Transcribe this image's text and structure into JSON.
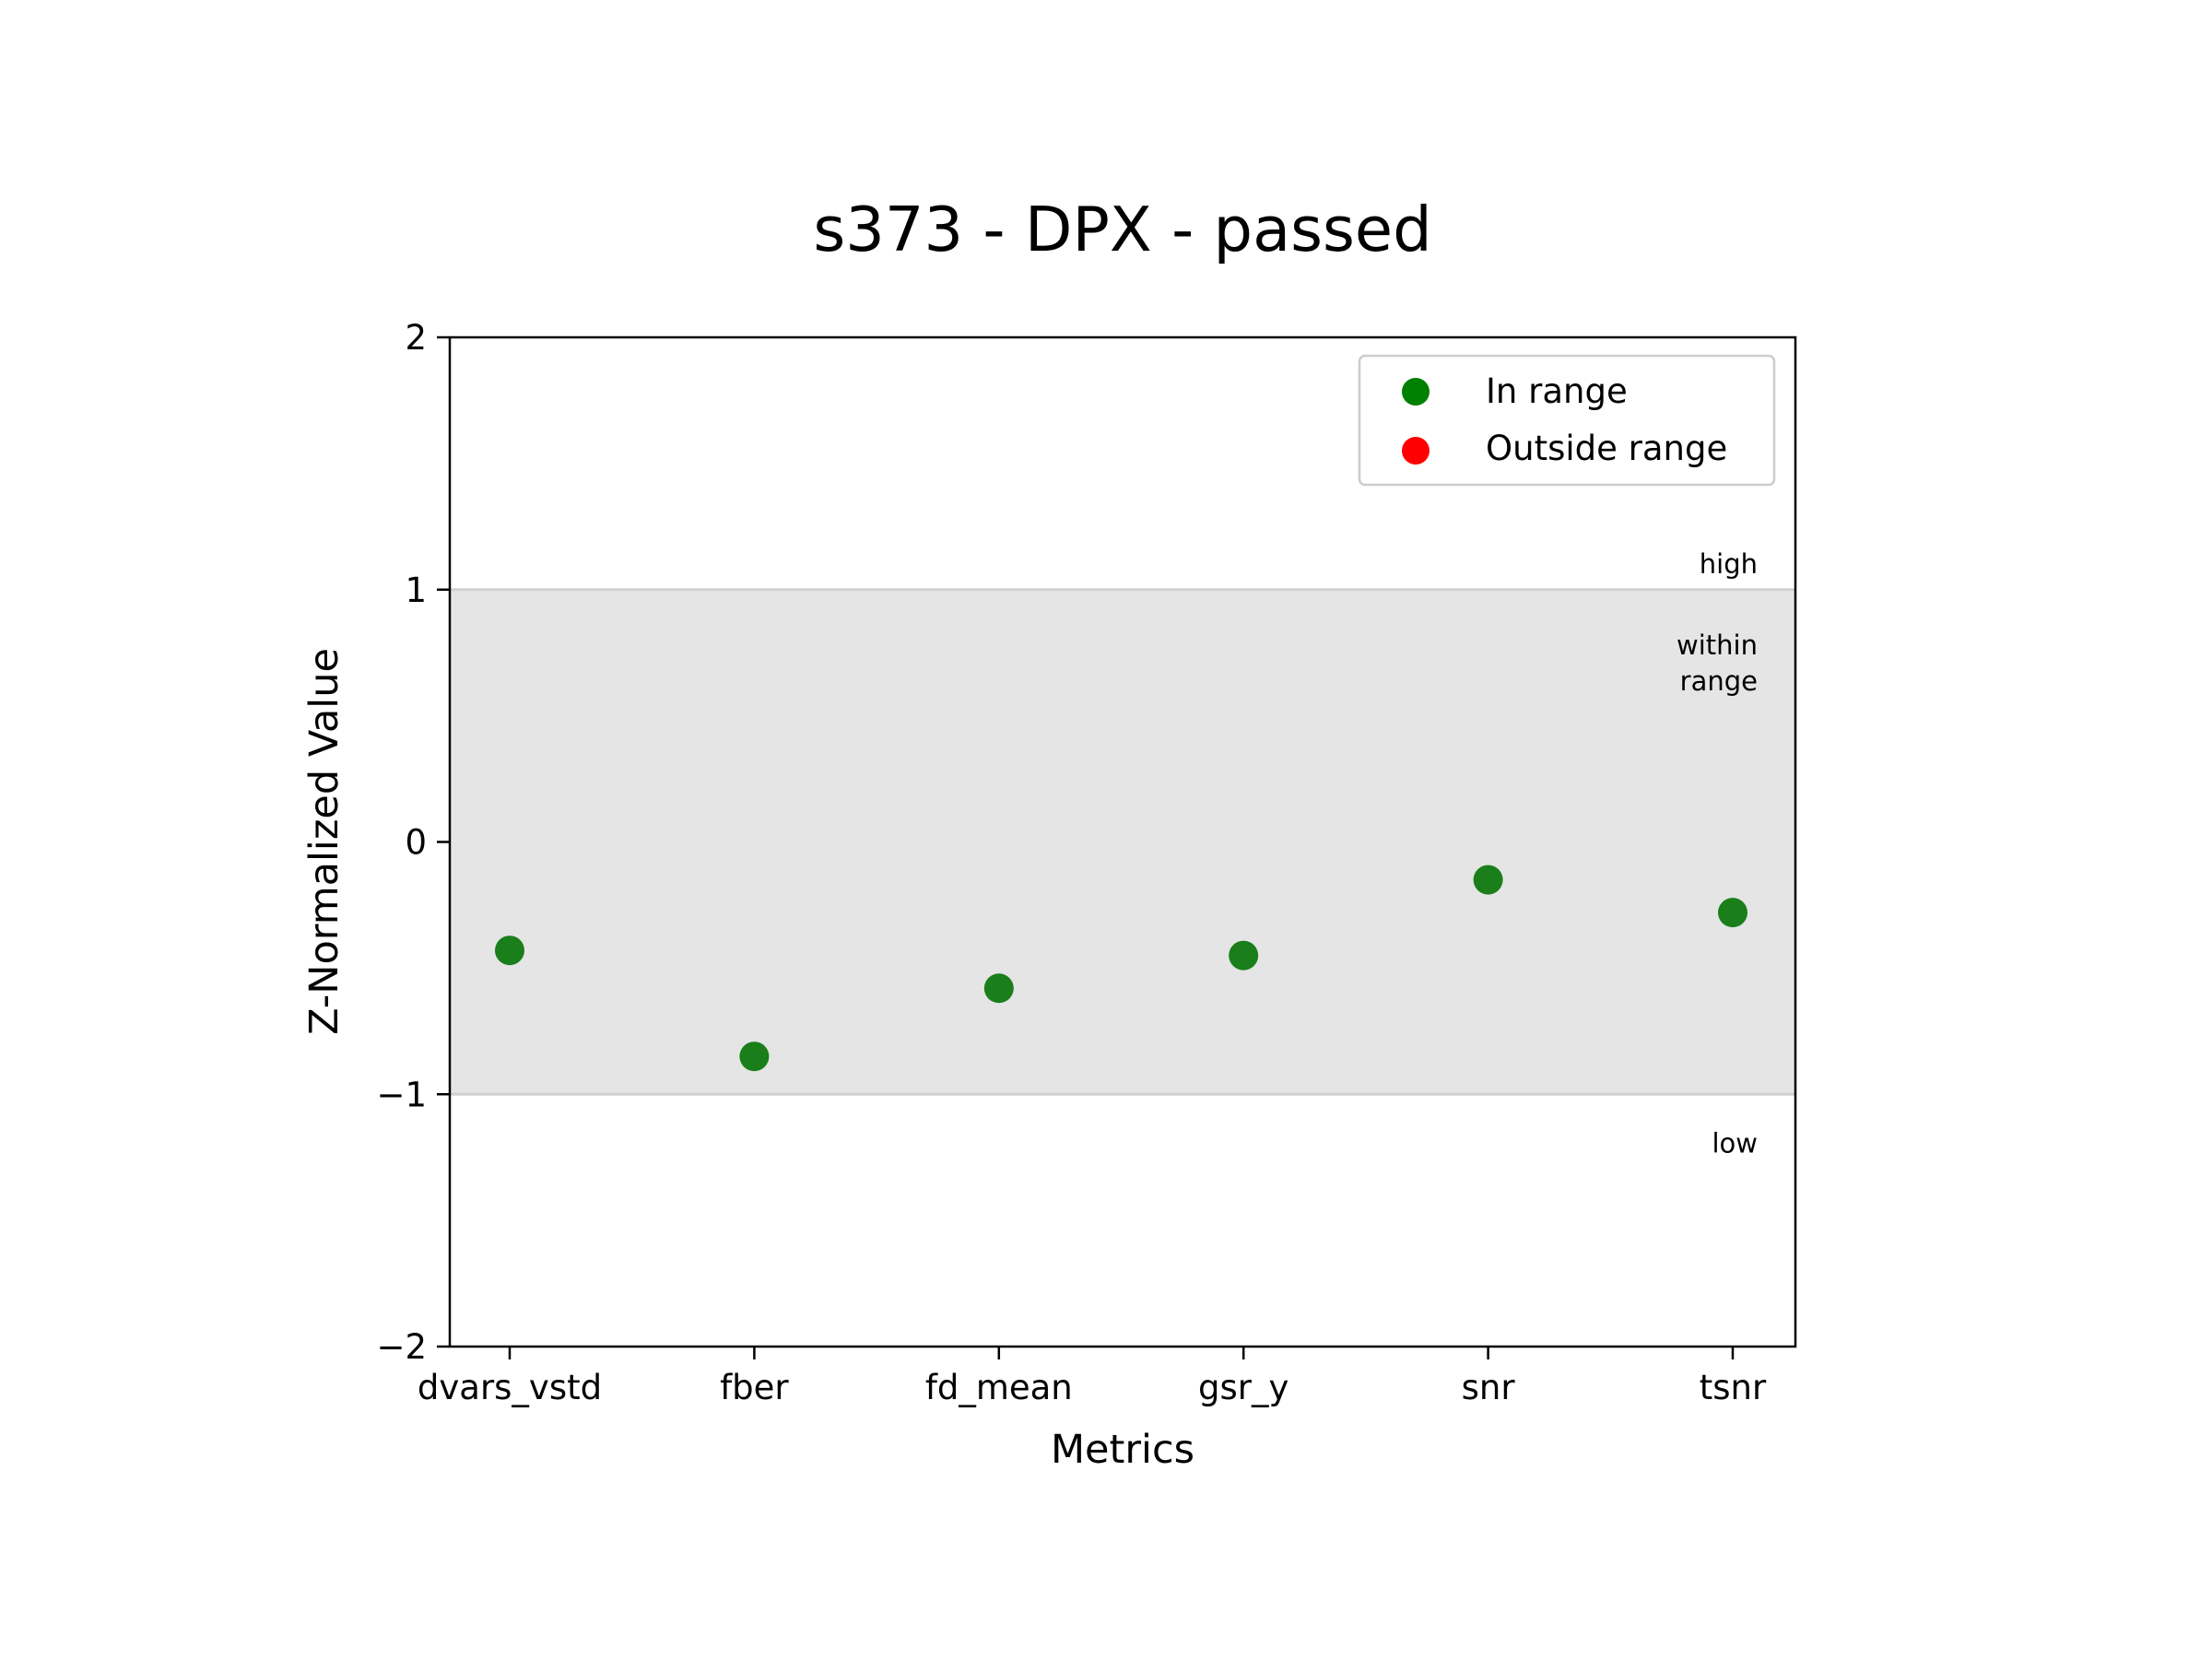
{
  "chart_data": {
    "type": "scatter",
    "title": "s373 - DPX - passed",
    "xlabel": "Metrics",
    "ylabel": "Z-Normalized Value",
    "categories": [
      "dvars_vstd",
      "fber",
      "fd_mean",
      "gsr_y",
      "snr",
      "tsnr"
    ],
    "ylim": [
      -2,
      2
    ],
    "yticks": [
      2,
      1,
      0,
      -1,
      -2
    ],
    "ytick_labels": [
      "2",
      "1",
      "0",
      "−1",
      "−2"
    ],
    "series": [
      {
        "name": "In range",
        "color": "#1a7f1a",
        "values": [
          -0.43,
          -0.85,
          -0.58,
          -0.45,
          -0.15,
          -0.28
        ]
      },
      {
        "name": "Outside range",
        "color": "#ff0000",
        "values": []
      }
    ],
    "band": {
      "from": -1,
      "to": 1,
      "color": "#e5e5e5",
      "labels": {
        "high": "high",
        "within": [
          "within",
          "range"
        ],
        "low": "low"
      }
    },
    "legend": {
      "position": "top-right",
      "items": [
        {
          "label": "In range",
          "color": "#008000"
        },
        {
          "label": "Outside range",
          "color": "#ff0000"
        }
      ]
    },
    "grid": false
  }
}
